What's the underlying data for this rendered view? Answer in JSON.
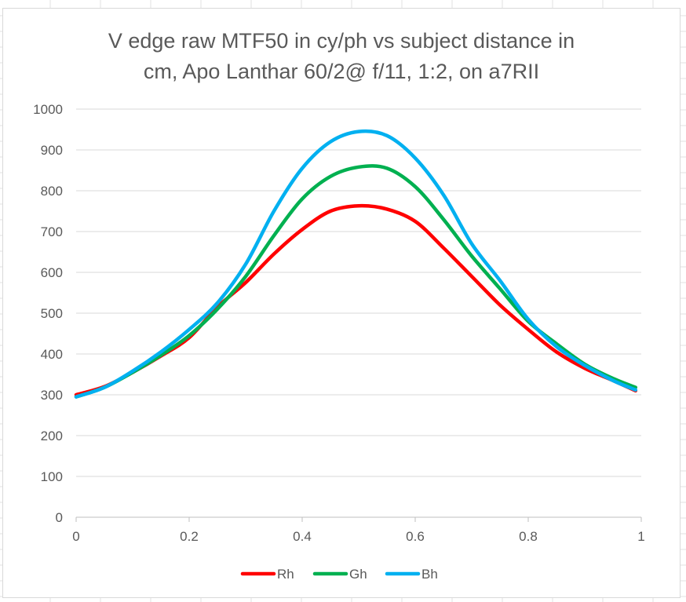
{
  "chart_data": {
    "type": "line",
    "title": "V edge raw MTF50 in cy/ph vs subject distance in cm, Apo Lanthar 60/2@ f/11, 1:2, on a7RII",
    "title_lines": [
      "V edge raw MTF50 in cy/ph vs subject distance in",
      "cm, Apo Lanthar 60/2@ f/11, 1:2, on a7RII"
    ],
    "xlabel": "",
    "ylabel": "",
    "xlim": [
      0,
      1
    ],
    "ylim": [
      0,
      1000
    ],
    "x_ticks": [
      "0",
      "0.2",
      "0.4",
      "0.6",
      "0.8",
      "1"
    ],
    "y_ticks": [
      "0",
      "100",
      "200",
      "300",
      "400",
      "500",
      "600",
      "700",
      "800",
      "900",
      "1000"
    ],
    "grid": "horizontal",
    "legend_position": "bottom",
    "x": [
      0.0,
      0.05,
      0.1,
      0.15,
      0.2,
      0.25,
      0.3,
      0.35,
      0.4,
      0.45,
      0.5,
      0.55,
      0.6,
      0.65,
      0.7,
      0.75,
      0.8,
      0.85,
      0.9,
      0.95,
      0.99
    ],
    "series": [
      {
        "name": "Rh",
        "color": "#ff0000",
        "values": [
          300,
          320,
          355,
          395,
          440,
          515,
          575,
          645,
          705,
          750,
          763,
          755,
          725,
          660,
          590,
          520,
          460,
          405,
          365,
          335,
          310
        ]
      },
      {
        "name": "Gh",
        "color": "#00b050",
        "values": [
          295,
          318,
          355,
          397,
          445,
          510,
          590,
          690,
          780,
          835,
          858,
          855,
          810,
          730,
          640,
          560,
          480,
          425,
          375,
          340,
          318
        ]
      },
      {
        "name": "Bh",
        "color": "#00b0f0",
        "values": [
          295,
          318,
          358,
          405,
          460,
          525,
          620,
          750,
          855,
          920,
          945,
          935,
          880,
          790,
          670,
          580,
          485,
          418,
          372,
          335,
          312
        ]
      }
    ]
  }
}
